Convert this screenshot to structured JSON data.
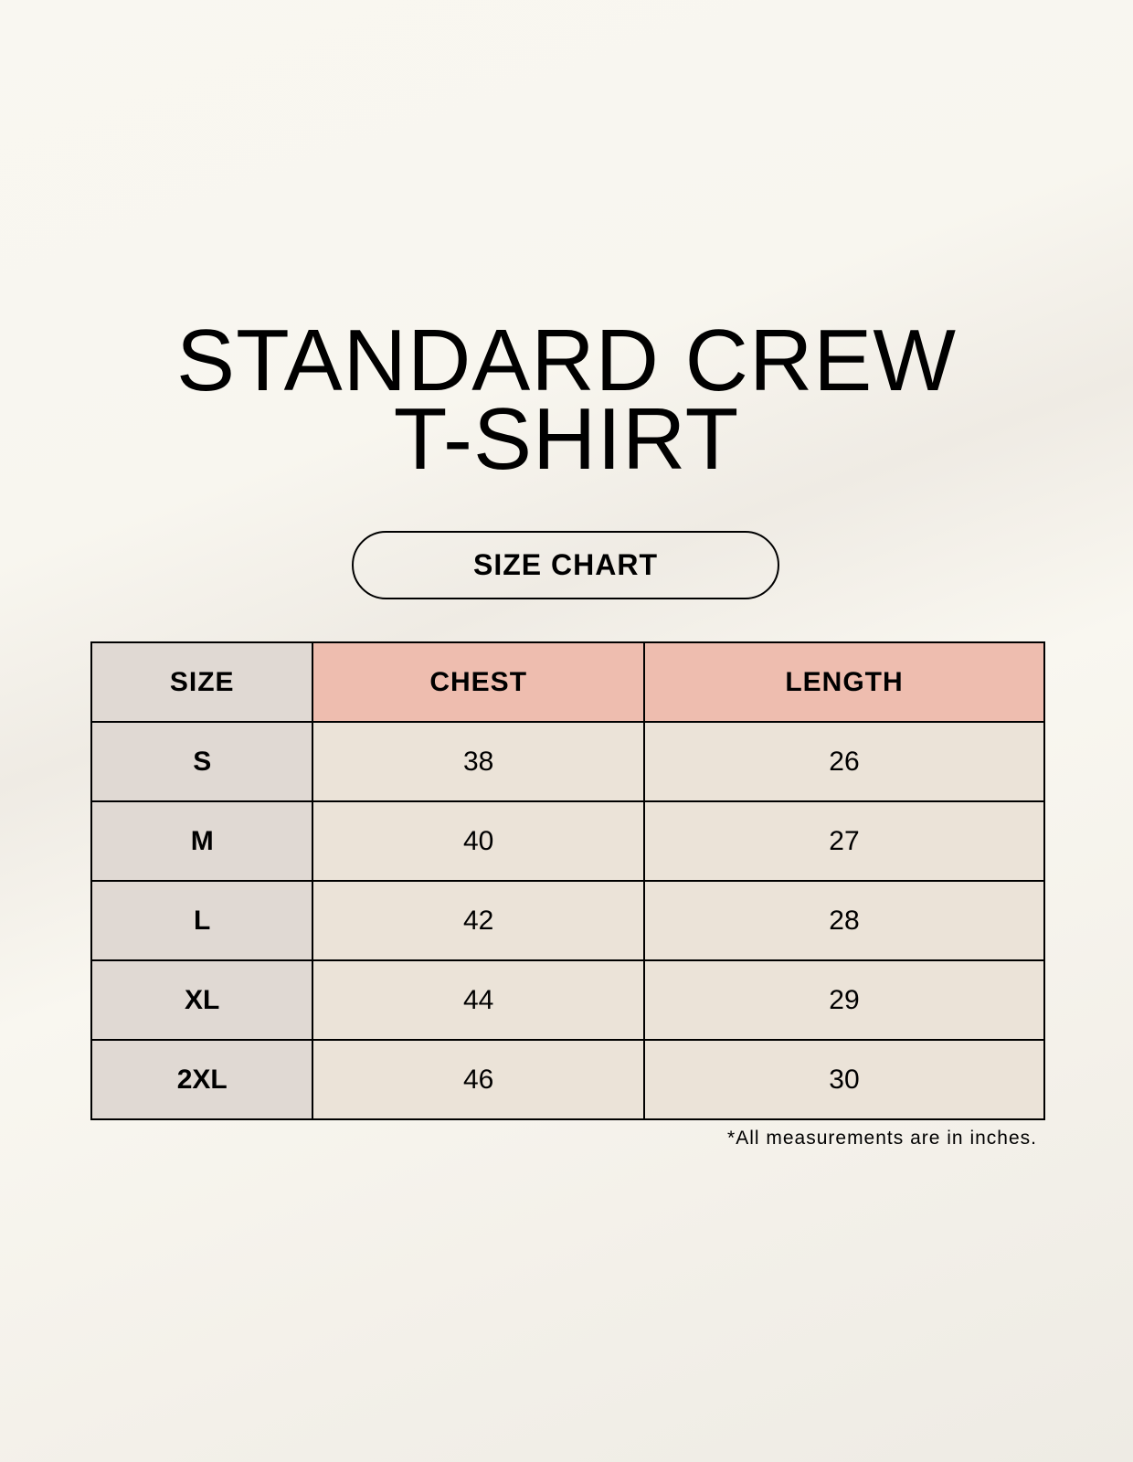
{
  "title_lines": [
    "STANDARD CREW",
    "T-SHIRT"
  ],
  "badge": "SIZE CHART",
  "table": {
    "headers": [
      "SIZE",
      "CHEST",
      "LENGTH"
    ],
    "rows": [
      [
        "S",
        "38",
        "26"
      ],
      [
        "M",
        "40",
        "27"
      ],
      [
        "L",
        "42",
        "28"
      ],
      [
        "XL",
        "44",
        "29"
      ],
      [
        "2XL",
        "46",
        "30"
      ]
    ]
  },
  "footnote": "*All measurements are in inches.",
  "colors": {
    "size_column": "#e0d9d3",
    "header_accent": "#eebdaf",
    "cells": "#ebe3d8"
  }
}
